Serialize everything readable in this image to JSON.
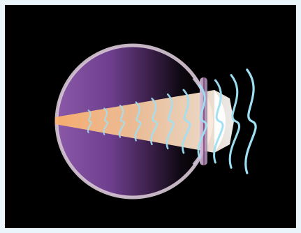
{
  "figure": {
    "subject": "eye",
    "colors": {
      "frame": "#eaf4fb",
      "background": "#000000",
      "eyeball_fill": "#7a4a9a",
      "eyeball_edge": "#d8c8d6",
      "lens": "#b7a0c6",
      "beam": "#f7c89a",
      "beam_focus": "#ffffff",
      "waves": "#9fe0f4"
    },
    "wave_count": 11
  }
}
